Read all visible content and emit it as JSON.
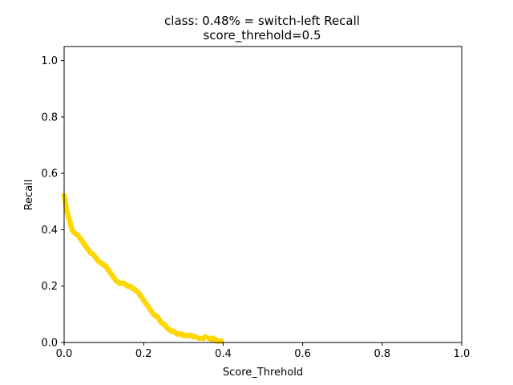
{
  "chart_data": {
    "type": "scatter",
    "title_lines": [
      "class: 0.48% = switch-left Recall",
      "score_threhold=0.5"
    ],
    "xlabel": "Score_Threhold",
    "ylabel": "Recall",
    "xlim": [
      0.0,
      1.0
    ],
    "ylim": [
      0.0,
      1.05
    ],
    "xticks": [
      "0.0",
      "0.2",
      "0.4",
      "0.6",
      "0.8",
      "1.0"
    ],
    "yticks": [
      "0.0",
      "0.2",
      "0.4",
      "0.6",
      "0.8",
      "1.0"
    ],
    "grid": false,
    "marker_color": "#FFD700",
    "series": [
      {
        "points": [
          [
            0.0,
            0.52
          ],
          [
            0.002,
            0.51
          ],
          [
            0.003,
            0.5
          ],
          [
            0.004,
            0.49
          ],
          [
            0.005,
            0.48
          ],
          [
            0.006,
            0.47
          ],
          [
            0.008,
            0.46
          ],
          [
            0.01,
            0.45
          ],
          [
            0.012,
            0.44
          ],
          [
            0.014,
            0.43
          ],
          [
            0.016,
            0.42
          ],
          [
            0.018,
            0.41
          ],
          [
            0.02,
            0.4
          ],
          [
            0.025,
            0.39
          ],
          [
            0.03,
            0.385
          ],
          [
            0.035,
            0.38
          ],
          [
            0.04,
            0.37
          ],
          [
            0.045,
            0.36
          ],
          [
            0.05,
            0.35
          ],
          [
            0.055,
            0.34
          ],
          [
            0.06,
            0.33
          ],
          [
            0.065,
            0.32
          ],
          [
            0.07,
            0.315
          ],
          [
            0.075,
            0.31
          ],
          [
            0.08,
            0.3
          ],
          [
            0.085,
            0.29
          ],
          [
            0.09,
            0.285
          ],
          [
            0.095,
            0.28
          ],
          [
            0.1,
            0.275
          ],
          [
            0.105,
            0.27
          ],
          [
            0.11,
            0.26
          ],
          [
            0.115,
            0.25
          ],
          [
            0.12,
            0.24
          ],
          [
            0.125,
            0.23
          ],
          [
            0.13,
            0.22
          ],
          [
            0.135,
            0.215
          ],
          [
            0.14,
            0.21
          ],
          [
            0.145,
            0.21
          ],
          [
            0.15,
            0.21
          ],
          [
            0.155,
            0.205
          ],
          [
            0.16,
            0.2
          ],
          [
            0.165,
            0.2
          ],
          [
            0.17,
            0.195
          ],
          [
            0.175,
            0.19
          ],
          [
            0.18,
            0.185
          ],
          [
            0.185,
            0.18
          ],
          [
            0.19,
            0.17
          ],
          [
            0.195,
            0.16
          ],
          [
            0.2,
            0.15
          ],
          [
            0.205,
            0.14
          ],
          [
            0.21,
            0.13
          ],
          [
            0.215,
            0.12
          ],
          [
            0.22,
            0.11
          ],
          [
            0.225,
            0.1
          ],
          [
            0.23,
            0.095
          ],
          [
            0.235,
            0.09
          ],
          [
            0.24,
            0.08
          ],
          [
            0.245,
            0.07
          ],
          [
            0.25,
            0.065
          ],
          [
            0.255,
            0.06
          ],
          [
            0.26,
            0.05
          ],
          [
            0.265,
            0.045
          ],
          [
            0.27,
            0.04
          ],
          [
            0.275,
            0.04
          ],
          [
            0.28,
            0.035
          ],
          [
            0.285,
            0.03
          ],
          [
            0.29,
            0.03
          ],
          [
            0.295,
            0.03
          ],
          [
            0.3,
            0.025
          ],
          [
            0.305,
            0.025
          ],
          [
            0.31,
            0.025
          ],
          [
            0.315,
            0.025
          ],
          [
            0.32,
            0.025
          ],
          [
            0.325,
            0.02
          ],
          [
            0.33,
            0.02
          ],
          [
            0.34,
            0.015
          ],
          [
            0.35,
            0.015
          ],
          [
            0.355,
            0.02
          ],
          [
            0.365,
            0.015
          ],
          [
            0.37,
            0.01
          ],
          [
            0.375,
            0.015
          ],
          [
            0.38,
            0.01
          ],
          [
            0.385,
            0.005
          ],
          [
            0.39,
            0.005
          ],
          [
            0.395,
            0.005
          ]
        ]
      }
    ]
  }
}
